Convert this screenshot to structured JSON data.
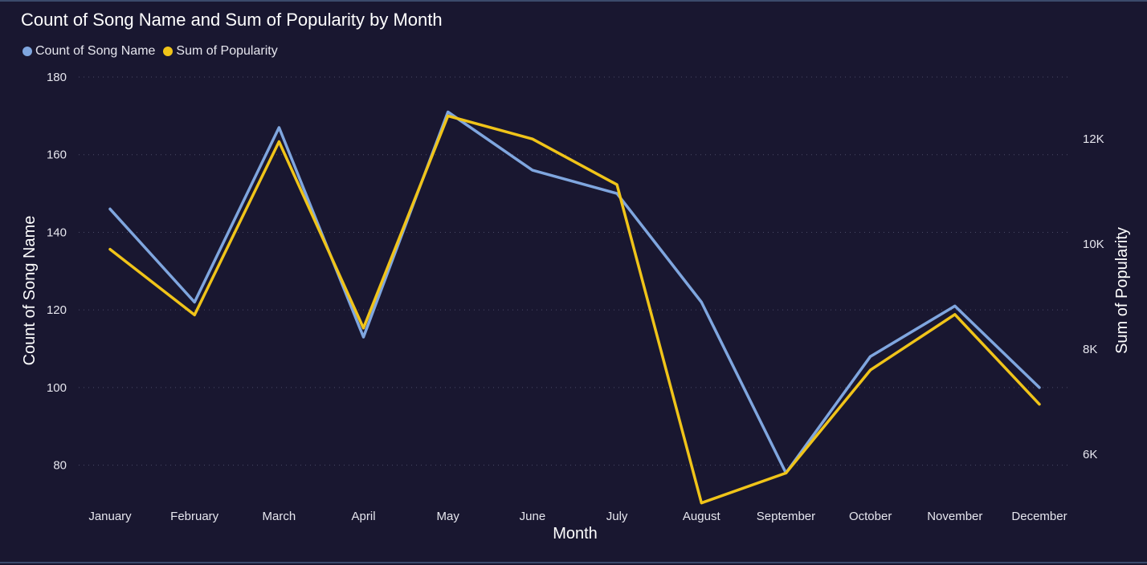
{
  "chart_data": {
    "type": "line",
    "title": "Count of Song Name and Sum of Popularity by Month",
    "xlabel": "Month",
    "ylabel": "Count of Song Name",
    "ylabel_right": "Sum of Popularity",
    "categories": [
      "January",
      "February",
      "March",
      "April",
      "May",
      "June",
      "July",
      "August",
      "September",
      "October",
      "November",
      "December"
    ],
    "series": [
      {
        "name": "Count of Song Name",
        "axis": "left",
        "color": "#7fa6df",
        "values": [
          146,
          122,
          167,
          113,
          171,
          156,
          150,
          122,
          78,
          108,
          121,
          100
        ]
      },
      {
        "name": "Sum of Popularity",
        "axis": "right",
        "color": "#f0c419",
        "values": [
          9900,
          8650,
          11950,
          8400,
          12440,
          12000,
          11130,
          5070,
          5640,
          7600,
          8660,
          6950
        ]
      }
    ],
    "ylim": [
      70,
      180
    ],
    "y_ticks": [
      80,
      100,
      120,
      140,
      160,
      180
    ],
    "ylim_right": [
      5050,
      13180
    ],
    "y_ticks_right": [
      6000,
      8000,
      10000,
      12000
    ],
    "y_tick_labels_right": [
      "6K",
      "8K",
      "10K",
      "12K"
    ],
    "grid": true,
    "legend_position": "top-left"
  }
}
